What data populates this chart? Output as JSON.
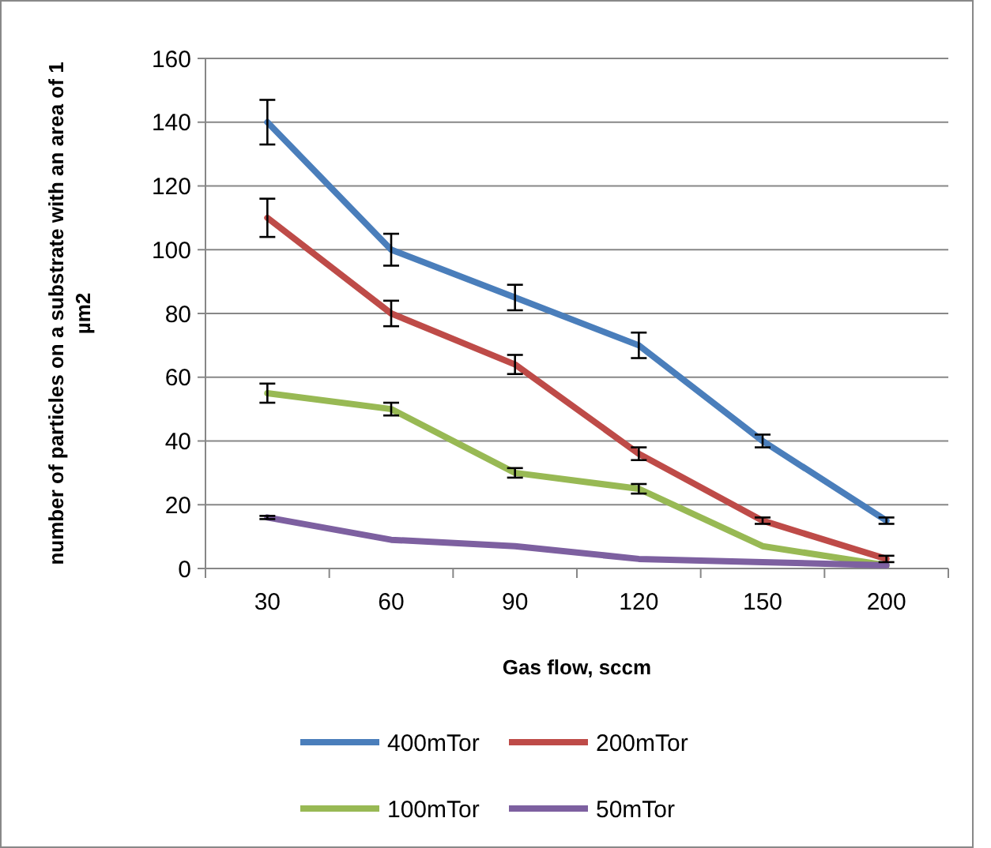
{
  "chart_data": {
    "type": "line",
    "xlabel": "Gas flow, sccm",
    "ylabel": "number of particles on a substrate with an area of 1 µm2",
    "categories": [
      "30",
      "60",
      "90",
      "120",
      "150",
      "200"
    ],
    "ylim": [
      0,
      160
    ],
    "yticks": [
      0,
      20,
      40,
      60,
      80,
      100,
      120,
      140,
      160
    ],
    "grid": "y",
    "legend": "bottom",
    "marker": "none",
    "line_style": "solid",
    "series": [
      {
        "name": "400mTor",
        "color": "#4a7ebb",
        "values": [
          140,
          100,
          85,
          70,
          40,
          15
        ],
        "errors": [
          7,
          5,
          4,
          4,
          2,
          1
        ]
      },
      {
        "name": "200mTor",
        "color": "#be4b48",
        "values": [
          110,
          80,
          64,
          36,
          15,
          3
        ],
        "errors": [
          6,
          4,
          3,
          2,
          1,
          1
        ]
      },
      {
        "name": "100mTor",
        "color": "#98b954",
        "values": [
          55,
          50,
          30,
          25,
          7,
          1
        ],
        "errors": [
          3,
          2,
          1.5,
          1.5,
          null,
          null
        ]
      },
      {
        "name": "50mTor",
        "color": "#7d60a0",
        "values": [
          16,
          9,
          7,
          3,
          2,
          1
        ],
        "errors": [
          0.5,
          null,
          null,
          null,
          null,
          null
        ]
      }
    ]
  }
}
